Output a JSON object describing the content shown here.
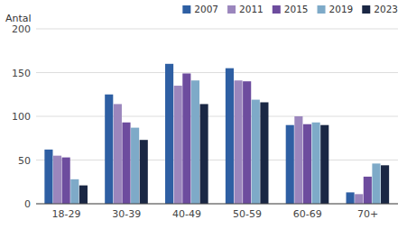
{
  "chart_data": {
    "type": "bar",
    "ylabel": "Antal",
    "categories": [
      "18-29",
      "30-39",
      "40-49",
      "50-59",
      "60-69",
      "70+"
    ],
    "series": [
      {
        "name": "2007",
        "color": "#2e5fa3",
        "values": [
          62,
          125,
          160,
          155,
          90,
          13
        ]
      },
      {
        "name": "2011",
        "color": "#9b86bd",
        "values": [
          55,
          114,
          135,
          141,
          100,
          11
        ]
      },
      {
        "name": "2015",
        "color": "#6d4c9e",
        "values": [
          53,
          93,
          149,
          140,
          91,
          31
        ]
      },
      {
        "name": "2019",
        "color": "#7eaac8",
        "values": [
          28,
          87,
          141,
          119,
          93,
          46
        ]
      },
      {
        "name": "2023",
        "color": "#1a2744",
        "values": [
          21,
          73,
          114,
          116,
          90,
          44
        ]
      }
    ],
    "ylim": [
      0,
      200
    ],
    "yticks": [
      0,
      50,
      100,
      150,
      200
    ],
    "grid": true,
    "legend": "top-right"
  }
}
